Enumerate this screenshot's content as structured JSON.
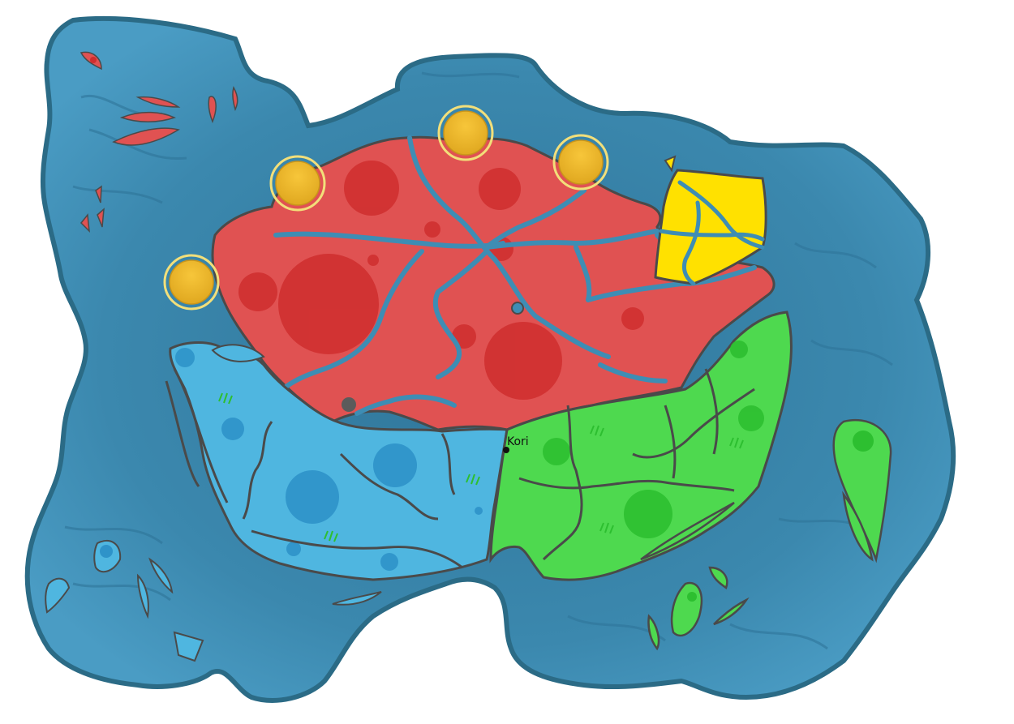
{
  "map": {
    "type": "fantasy-territory-map",
    "cities": [
      {
        "id": "kori",
        "label": "Kori"
      }
    ],
    "markers": [
      {
        "id": "gold-coin-1",
        "type": "gold-coin-icon"
      },
      {
        "id": "gold-coin-2",
        "type": "gold-coin-icon"
      },
      {
        "id": "gold-coin-3",
        "type": "gold-coin-icon"
      },
      {
        "id": "gold-coin-4",
        "type": "gold-coin-icon"
      }
    ],
    "colors": {
      "ocean": "#3e8db4",
      "ocean_dark": "#2f7599",
      "coast_outline": "#2b6b86",
      "red_region": "#e05252",
      "red_region_dark": "#cf2e2e",
      "blue_region": "#4fb6e0",
      "blue_region_dark": "#2e93c9",
      "green_region": "#4ed94f",
      "green_region_dark": "#2dbf30",
      "yellow_region": "#ffe100",
      "river": "#3e8db4",
      "border": "#4a4a4a",
      "gold": "#e8b52a",
      "gold_ring": "#f2df7a"
    }
  }
}
